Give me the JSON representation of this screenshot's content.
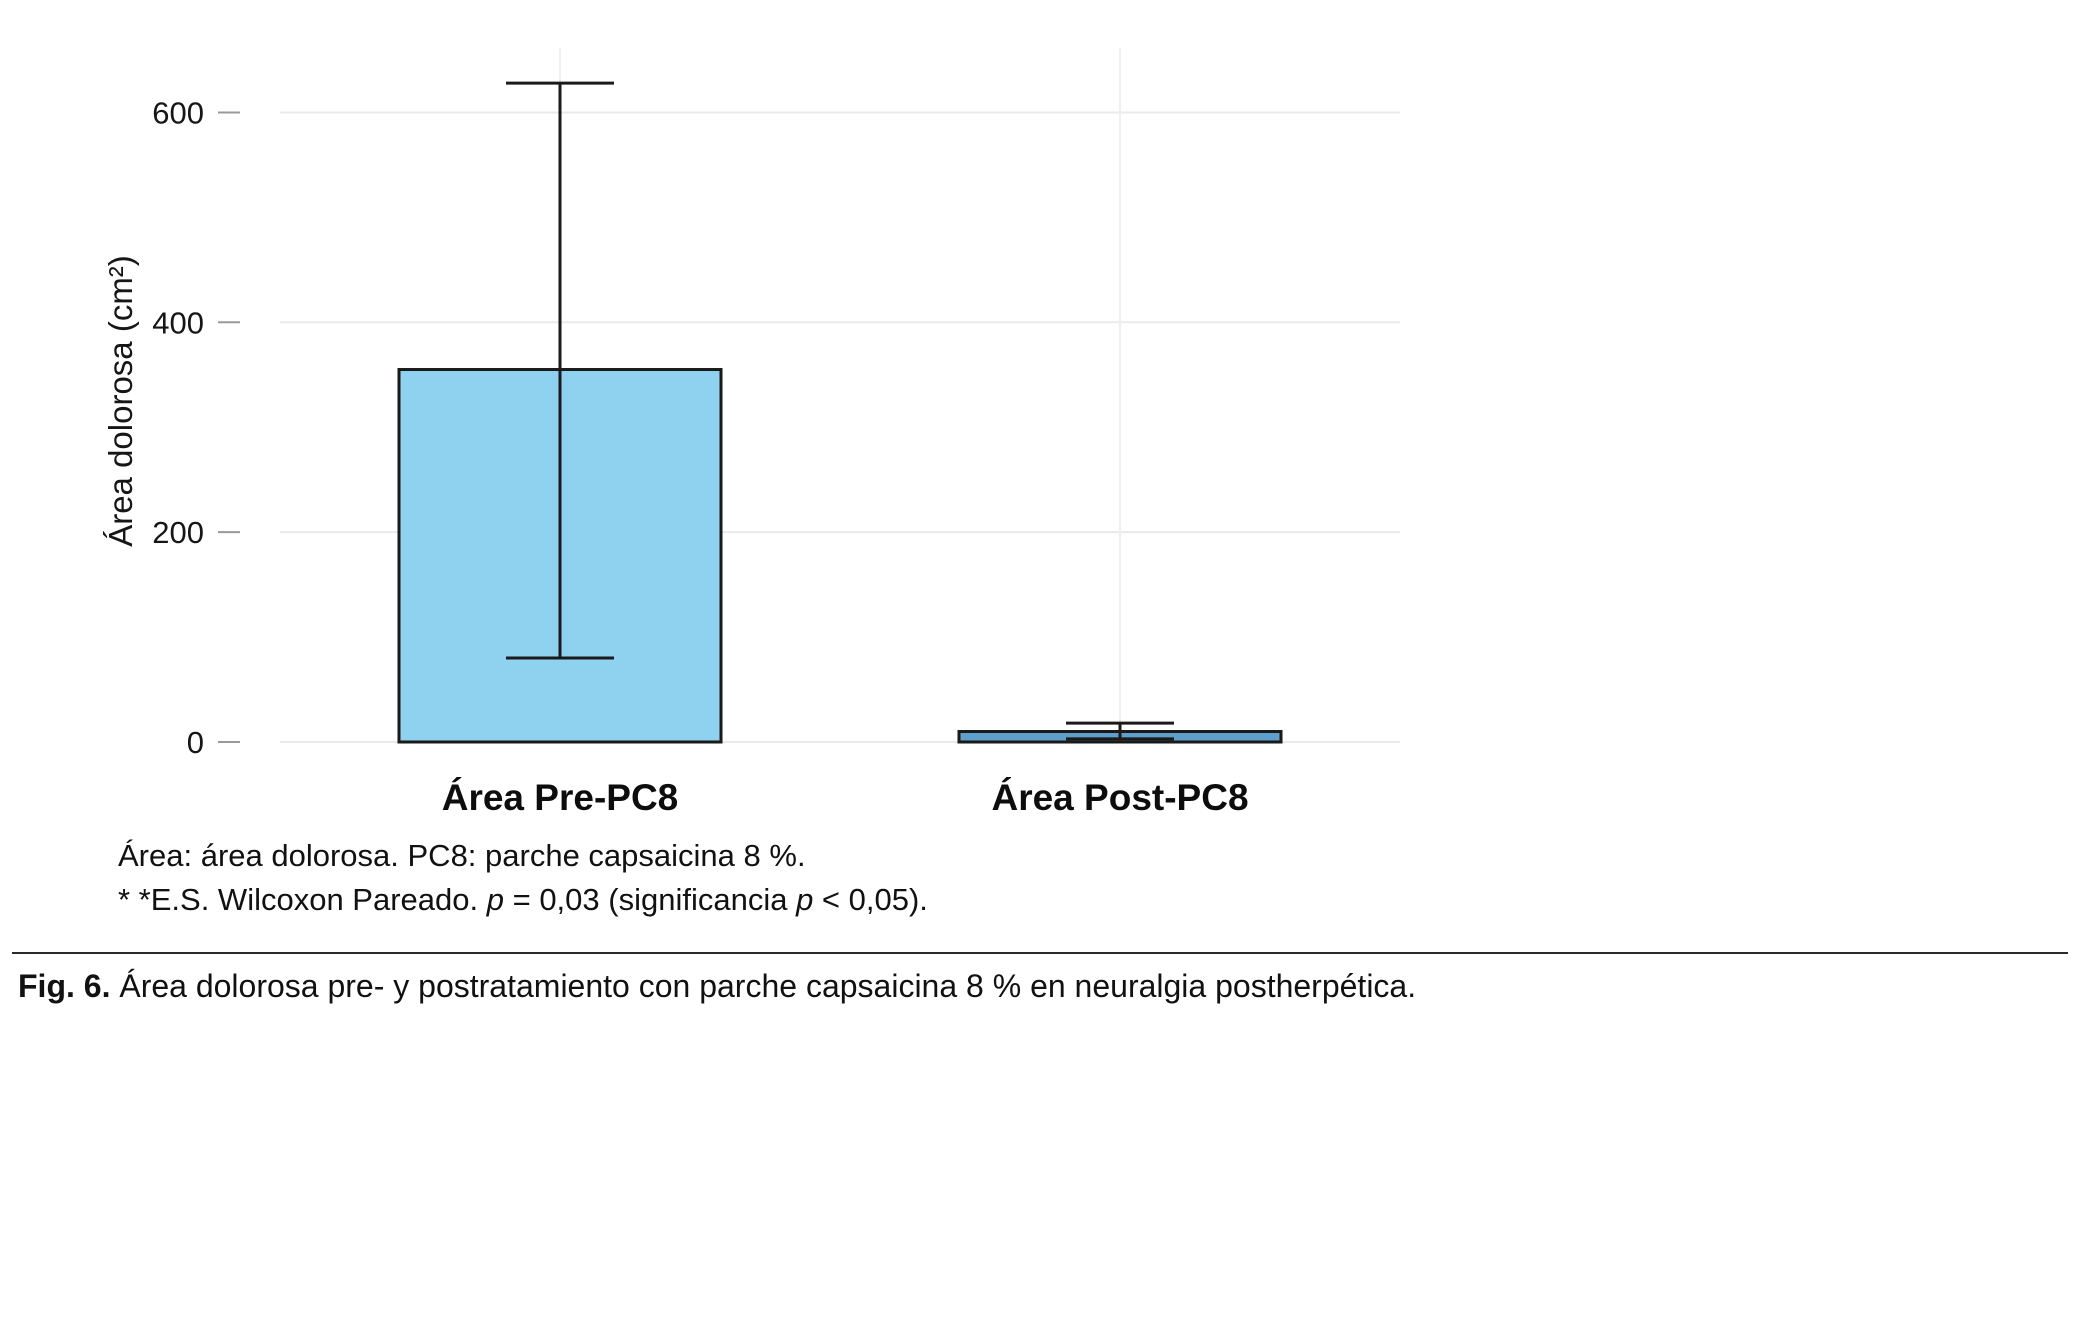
{
  "chart_data": {
    "type": "bar",
    "title": "",
    "ylabel": "Área dolorosa (cm²)",
    "xlabel": "",
    "ylim": [
      0,
      650
    ],
    "yticks": [
      0,
      200,
      400,
      600
    ],
    "categories": [
      "Área Pre-PC8",
      "Área Post-PC8"
    ],
    "values": [
      355,
      10
    ],
    "error_bars": [
      {
        "low": 80,
        "high": 628
      },
      {
        "low": 3,
        "high": 18
      }
    ],
    "bar_colors": [
      "#8ED2EF",
      "#5E9FCB"
    ],
    "bar_border_color": "#1A1A1A",
    "grid": true,
    "grid_color": "#EAEAEA",
    "legend": "none"
  },
  "footnotes": {
    "line1": "Área: área dolorosa. PC8: parche capsaicina 8 %.",
    "line2": {
      "part1": "* *E.S. Wilcoxon Pareado. ",
      "italic1": "p",
      "part2": " = 0,03 (significancia ",
      "italic2": "p",
      "part3": " < 0,05)."
    }
  },
  "figure_caption": {
    "label": "Fig. 6.",
    "text": " Área dolorosa pre- y postratamiento con parche capsaicina 8 % en neuralgia postherpética."
  }
}
